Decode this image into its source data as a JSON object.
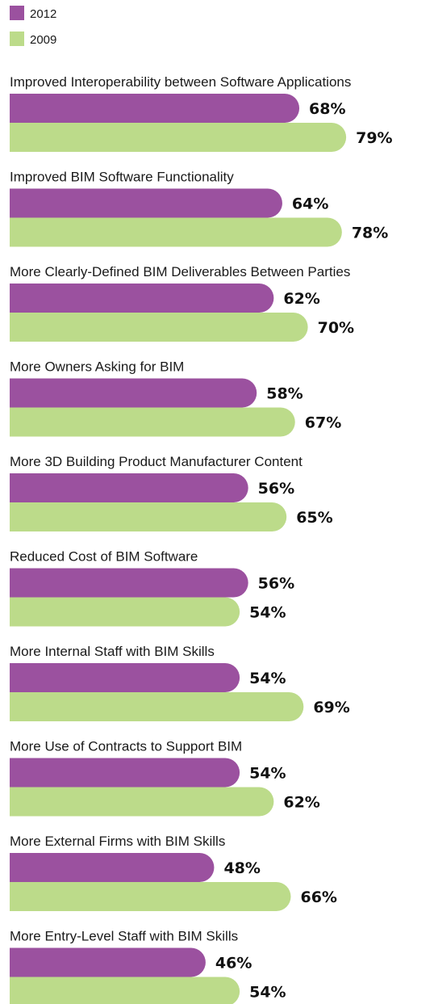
{
  "chart_data": {
    "type": "bar",
    "orientation": "horizontal",
    "value_suffix": "%",
    "xlim": [
      0,
      100
    ],
    "legend_position": "top-left",
    "grid": false,
    "categories": [
      "Improved Interoperability between Software Applications",
      "Improved BIM Software Functionality",
      "More Clearly-Defined BIM Deliverables Between Parties",
      "More Owners Asking for BIM",
      "More 3D Building Product Manufacturer Content",
      "Reduced Cost of BIM Software",
      "More Internal Staff with BIM Skills",
      "More Use of Contracts to Support BIM",
      "More External Firms with BIM Skills",
      "More Entry-Level Staff with BIM Skills"
    ],
    "series": [
      {
        "name": "2012",
        "color": "#9b519f",
        "values": [
          68,
          64,
          62,
          58,
          56,
          56,
          54,
          54,
          48,
          46
        ]
      },
      {
        "name": "2009",
        "color": "#bcdb8a",
        "values": [
          79,
          78,
          70,
          67,
          65,
          54,
          69,
          62,
          66,
          54
        ]
      }
    ]
  }
}
